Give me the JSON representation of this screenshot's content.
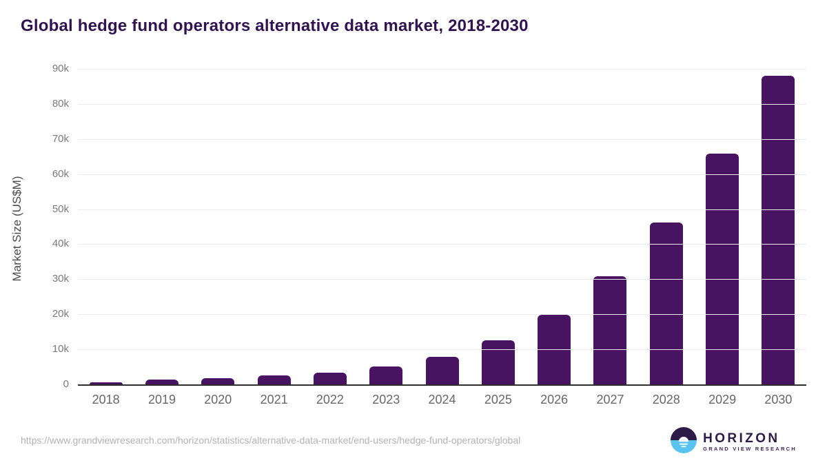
{
  "title": "Global hedge fund operators alternative data market, 2018-2030",
  "chart_data": {
    "type": "bar",
    "title": "Global hedge fund operators alternative data market, 2018-2030",
    "categories": [
      "2018",
      "2019",
      "2020",
      "2021",
      "2022",
      "2023",
      "2024",
      "2025",
      "2026",
      "2027",
      "2028",
      "2029",
      "2030"
    ],
    "values": [
      650,
      1300,
      1750,
      2600,
      3400,
      5150,
      7900,
      12600,
      19900,
      30900,
      46100,
      65800,
      88000
    ],
    "xlabel": "",
    "ylabel": "Market Size (US$M)",
    "ylim": [
      0,
      90000
    ],
    "ytick_values": [
      0,
      10000,
      20000,
      30000,
      40000,
      50000,
      60000,
      70000,
      80000,
      90000
    ],
    "ytick_labels": [
      "0",
      "10k",
      "20k",
      "30k",
      "40k",
      "50k",
      "60k",
      "70k",
      "80k",
      "90k"
    ],
    "grid": true,
    "legend": "none",
    "bar_color": "#481361"
  },
  "colors": {
    "title": "#321250",
    "bar": "#481361",
    "gridline": "#ececec",
    "axis_line": "#2e2e2e",
    "tick_label": "#7a7a7a",
    "logo_dark": "#2d1a47",
    "logo_blue": "#57c3ef"
  },
  "footer": {
    "source_url": "https://www.grandviewresearch.com/horizon/statistics/alternative-data-market/end-users/hedge-fund-operators/global",
    "logo_name": "HORIZON",
    "logo_subtitle": "GRAND VIEW RESEARCH"
  }
}
